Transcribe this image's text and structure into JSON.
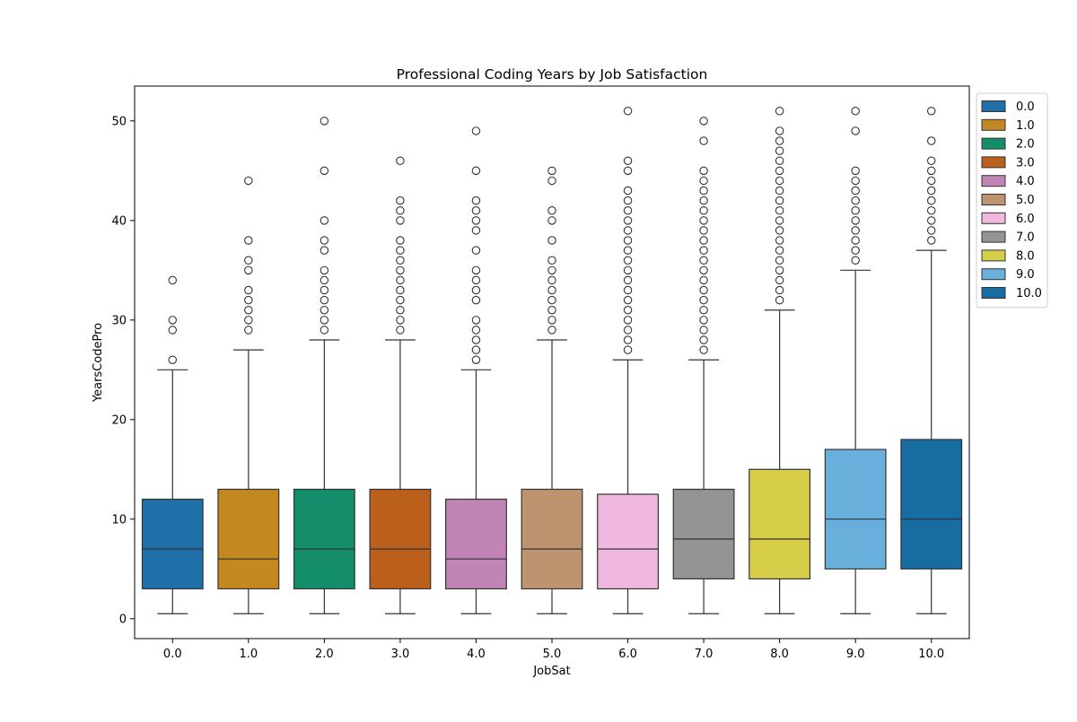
{
  "chart_data": {
    "type": "box",
    "title": "Professional Coding Years by Job Satisfaction",
    "xlabel": "JobSat",
    "ylabel": "YearsCodePro",
    "ylim": [
      -2,
      53.5
    ],
    "yticks": [
      0,
      10,
      20,
      30,
      40,
      50
    ],
    "yticks_text": [
      "0",
      "10",
      "20",
      "30",
      "40",
      "50"
    ],
    "grid": false,
    "legend_placement": "upper-right-outside",
    "categories": [
      "0.0",
      "1.0",
      "2.0",
      "3.0",
      "4.0",
      "5.0",
      "6.0",
      "7.0",
      "8.0",
      "9.0",
      "10.0"
    ],
    "series": [
      {
        "name": "0.0",
        "color": "#1f6fa8",
        "whisker_low": 0.5,
        "q1": 3,
        "median": 7,
        "q3": 12,
        "whisker_high": 25,
        "outliers": [
          26,
          29,
          30,
          34
        ]
      },
      {
        "name": "1.0",
        "color": "#c38820",
        "whisker_low": 0.5,
        "q1": 3,
        "median": 6,
        "q3": 13,
        "whisker_high": 27,
        "outliers": [
          29,
          30,
          31,
          32,
          33,
          35,
          36,
          38,
          44
        ]
      },
      {
        "name": "2.0",
        "color": "#148d6a",
        "whisker_low": 0.5,
        "q1": 3,
        "median": 7,
        "q3": 13,
        "whisker_high": 28,
        "outliers": [
          29,
          30,
          31,
          32,
          33,
          34,
          35,
          37,
          38,
          40,
          45,
          50
        ]
      },
      {
        "name": "3.0",
        "color": "#bb5f1d",
        "whisker_low": 0.5,
        "q1": 3,
        "median": 7,
        "q3": 13,
        "whisker_high": 28,
        "outliers": [
          29,
          30,
          31,
          32,
          33,
          34,
          35,
          36,
          37,
          38,
          40,
          41,
          42,
          46
        ]
      },
      {
        "name": "4.0",
        "color": "#c283b7",
        "whisker_low": 0.5,
        "q1": 3,
        "median": 6,
        "q3": 12,
        "whisker_high": 25,
        "outliers": [
          26,
          27,
          28,
          29,
          30,
          32,
          33,
          34,
          35,
          37,
          39,
          40,
          41,
          42,
          45,
          49
        ]
      },
      {
        "name": "5.0",
        "color": "#bd9370",
        "whisker_low": 0.5,
        "q1": 3,
        "median": 7,
        "q3": 13,
        "whisker_high": 28,
        "outliers": [
          29,
          30,
          31,
          32,
          33,
          34,
          35,
          36,
          38,
          40,
          41,
          44,
          45
        ]
      },
      {
        "name": "6.0",
        "color": "#f1b8df",
        "whisker_low": 0.5,
        "q1": 3,
        "median": 7,
        "q3": 12.5,
        "whisker_high": 26,
        "outliers": [
          27,
          28,
          29,
          30,
          31,
          32,
          33,
          34,
          35,
          36,
          37,
          38,
          39,
          40,
          41,
          42,
          43,
          45,
          46,
          51
        ]
      },
      {
        "name": "7.0",
        "color": "#949494",
        "whisker_low": 0.5,
        "q1": 4,
        "median": 8,
        "q3": 13,
        "whisker_high": 26,
        "outliers": [
          27,
          28,
          29,
          30,
          31,
          32,
          33,
          34,
          35,
          36,
          37,
          38,
          39,
          40,
          41,
          42,
          43,
          44,
          45,
          48,
          50
        ]
      },
      {
        "name": "8.0",
        "color": "#d6cd48",
        "whisker_low": 0.5,
        "q1": 4,
        "median": 8,
        "q3": 15,
        "whisker_high": 31,
        "outliers": [
          32,
          33,
          34,
          35,
          36,
          37,
          38,
          39,
          40,
          41,
          42,
          43,
          44,
          45,
          46,
          47,
          48,
          49,
          51
        ]
      },
      {
        "name": "9.0",
        "color": "#68b0db",
        "whisker_low": 0.5,
        "q1": 5,
        "median": 10,
        "q3": 17,
        "whisker_high": 35,
        "outliers": [
          36,
          37,
          38,
          39,
          40,
          41,
          42,
          43,
          44,
          45,
          49,
          51
        ]
      },
      {
        "name": "10.0",
        "color": "#176ca1",
        "whisker_low": 0.5,
        "q1": 5,
        "median": 10,
        "q3": 18,
        "whisker_high": 37,
        "outliers": [
          38,
          39,
          40,
          41,
          42,
          43,
          44,
          45,
          46,
          48,
          51
        ]
      }
    ]
  }
}
